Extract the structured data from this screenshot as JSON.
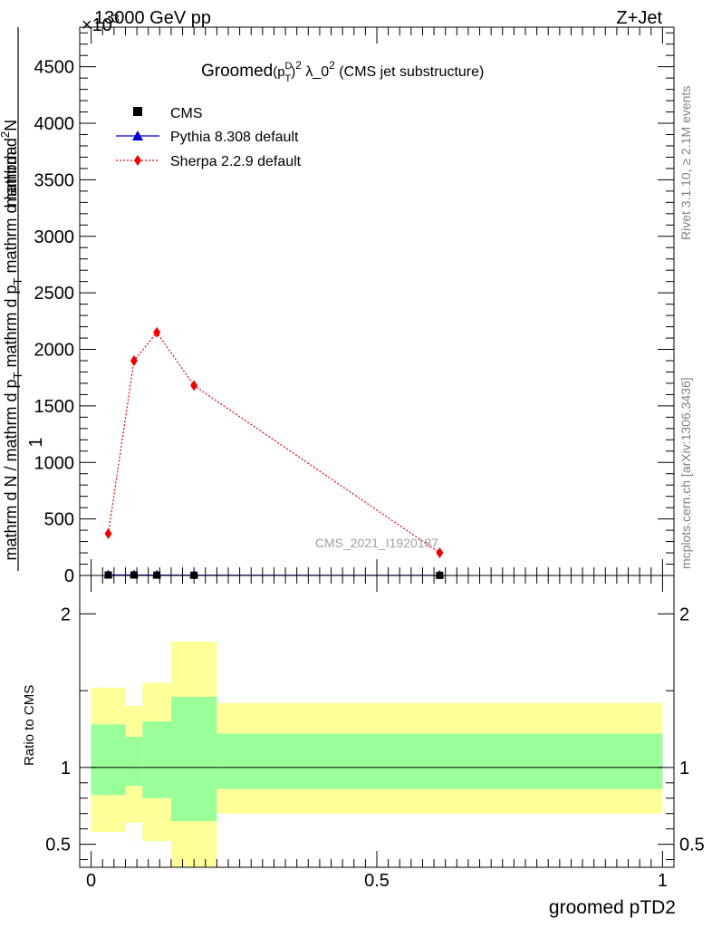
{
  "header": {
    "left": "13000 GeV pp",
    "right": "Z+Jet",
    "exponent": "×10",
    "exponent_power": "3"
  },
  "title": {
    "prefix": "Groomed",
    "p": "(p",
    "sup_d": "D",
    "sub_t": "T",
    "close": ")",
    "sq": "2",
    "lambda": " λ_0",
    "lambda_sq": "2",
    "suffix": " (CMS jet substructure)"
  },
  "side_text": {
    "rivet": "Rivet 3.1.10, ≥ 2.1M events",
    "mcplots": "mcplots.cern.ch [arXiv:1306.3436]"
  },
  "watermark": "CMS_2021_I1920187",
  "ylabel_main": {
    "one": "1",
    "num_a": "mathrm d",
    "num_b": "N",
    "den_a": "mathrm d N / mathrm d p",
    "den_b": "T",
    "den_c": " mathrm d p",
    "den_d": "T",
    "den_e": " mathrm d lambda",
    "sup": "2"
  },
  "ylabel_ratio": "Ratio to CMS",
  "xlabel": "groomed pTD2",
  "legend": [
    {
      "label": "CMS",
      "marker": "square",
      "color": "#000000"
    },
    {
      "label": "Pythia 8.308 default",
      "marker": "triangle",
      "color": "#0000cc"
    },
    {
      "label": "Sherpa 2.2.9 default",
      "marker": "diamond",
      "color": "#ee0000"
    }
  ],
  "chart_data": [
    {
      "type": "scatter",
      "panel": "main",
      "ylim": [
        0,
        4850
      ],
      "xlim": [
        -0.02,
        1.02
      ],
      "y_ticks": [
        "0",
        "500",
        "1000",
        "1500",
        "2000",
        "2500",
        "3000",
        "3500",
        "4000",
        "4500"
      ],
      "y_tick_values": [
        0,
        500,
        1000,
        1500,
        2000,
        2500,
        3000,
        3500,
        4000,
        4500
      ],
      "y_scale_note": "×10^3",
      "series": [
        {
          "name": "CMS",
          "x": [
            0.03,
            0.075,
            0.115,
            0.18,
            0.61
          ],
          "y": [
            4,
            4,
            3,
            2,
            1
          ]
        },
        {
          "name": "Pythia 8.308 default",
          "x": [
            0.03,
            0.075,
            0.115,
            0.18,
            0.61
          ],
          "y": [
            4,
            4,
            3,
            2,
            1
          ]
        },
        {
          "name": "Sherpa 2.2.9 default",
          "x": [
            0.03,
            0.075,
            0.115,
            0.18,
            0.61
          ],
          "y": [
            370,
            1900,
            2150,
            1680,
            200
          ]
        }
      ]
    },
    {
      "type": "area",
      "panel": "ratio",
      "ylabel": "Ratio to CMS",
      "xlabel": "groomed pTD2",
      "ylim": [
        0.35,
        2.25
      ],
      "y_ticks": [
        "0.5",
        "1",
        "2"
      ],
      "y_tick_values": [
        0.5,
        1,
        2
      ],
      "x_ticks": [
        "0",
        "0.5",
        "1"
      ],
      "x_tick_values": [
        0,
        0.5,
        1
      ],
      "xlim": [
        -0.02,
        1.02
      ],
      "reference": 1,
      "bands": [
        {
          "x0": 0.0,
          "x1": 0.06,
          "yellow": [
            0.58,
            1.52
          ],
          "green": [
            0.82,
            1.28
          ]
        },
        {
          "x0": 0.06,
          "x1": 0.09,
          "yellow": [
            0.64,
            1.4
          ],
          "green": [
            0.88,
            1.2
          ]
        },
        {
          "x0": 0.09,
          "x1": 0.14,
          "yellow": [
            0.52,
            1.55
          ],
          "green": [
            0.8,
            1.3
          ]
        },
        {
          "x0": 0.14,
          "x1": 0.22,
          "yellow": [
            0.2,
            1.82
          ],
          "green": [
            0.65,
            1.46
          ]
        },
        {
          "x0": 0.22,
          "x1": 1.0,
          "yellow": [
            0.7,
            1.42
          ],
          "green": [
            0.86,
            1.22
          ]
        }
      ]
    }
  ]
}
